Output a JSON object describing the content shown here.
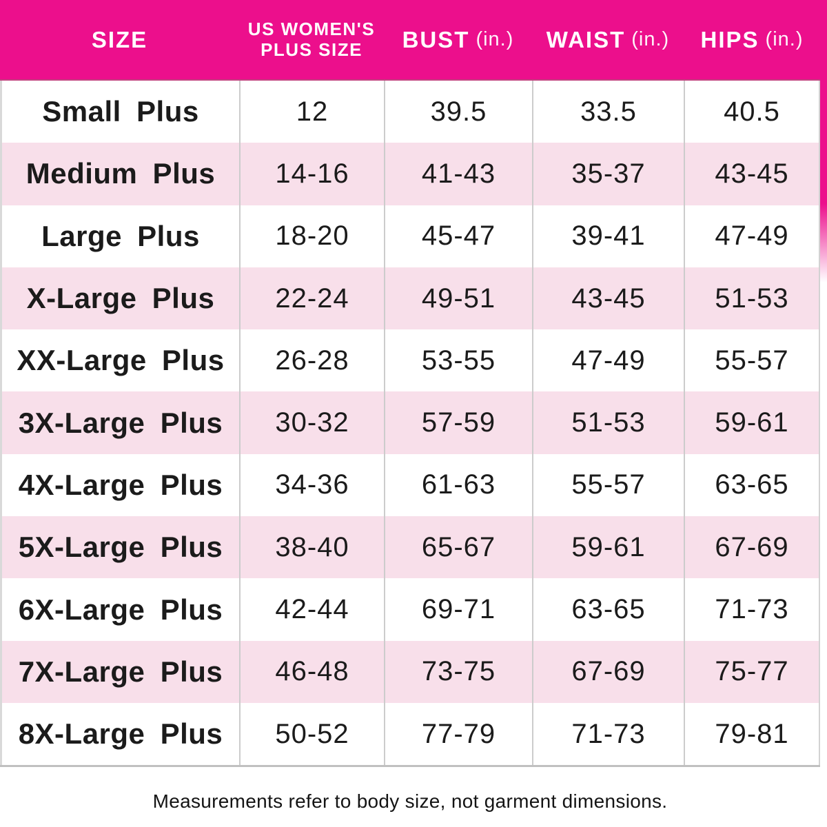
{
  "chart_data": {
    "type": "table",
    "columns": [
      {
        "label": "SIZE",
        "unit": ""
      },
      {
        "label": "US WOMEN'S PLUS SIZE",
        "unit": ""
      },
      {
        "label": "BUST",
        "unit": "(in.)"
      },
      {
        "label": "WAIST",
        "unit": "(in.)"
      },
      {
        "label": "HIPS",
        "unit": "(in.)"
      }
    ],
    "rows": [
      [
        "Small Plus",
        "12",
        "39.5",
        "33.5",
        "40.5"
      ],
      [
        "Medium Plus",
        "14-16",
        "41-43",
        "35-37",
        "43-45"
      ],
      [
        "Large Plus",
        "18-20",
        "45-47",
        "39-41",
        "47-49"
      ],
      [
        "X-Large Plus",
        "22-24",
        "49-51",
        "43-45",
        "51-53"
      ],
      [
        "XX-Large Plus",
        "26-28",
        "53-55",
        "47-49",
        "55-57"
      ],
      [
        "3X-Large Plus",
        "30-32",
        "57-59",
        "51-53",
        "59-61"
      ],
      [
        "4X-Large Plus",
        "34-36",
        "61-63",
        "55-57",
        "63-65"
      ],
      [
        "5X-Large Plus",
        "38-40",
        "65-67",
        "59-61",
        "67-69"
      ],
      [
        "6X-Large Plus",
        "42-44",
        "69-71",
        "63-65",
        "71-73"
      ],
      [
        "7X-Large Plus",
        "46-48",
        "73-75",
        "67-69",
        "75-77"
      ],
      [
        "8X-Large Plus",
        "50-52",
        "77-79",
        "71-73",
        "79-81"
      ]
    ],
    "footnote": "Measurements refer to body size, not garment dimensions."
  },
  "colors": {
    "header_bg": "#EC0F8C",
    "row_alt_bg": "#F8DFEA",
    "grid_line": "#CCCCCC",
    "header_text": "#FFFFFF",
    "text": "#1B1B1B"
  }
}
